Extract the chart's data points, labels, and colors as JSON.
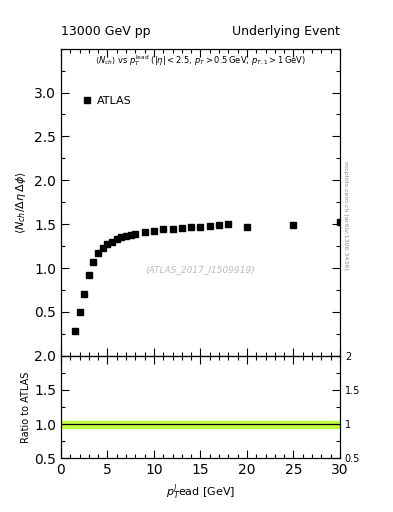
{
  "title_left": "13000 GeV pp",
  "title_right": "Underlying Event",
  "annotation": "(ATLAS_2017_I1509919)",
  "arxiv_text": "[arXiv:1306.3436]",
  "mcplots_text": "mcplots.cern.ch",
  "legend_label": "ATLAS",
  "ylabel_main": "<N_{ch}/ #Delta#eta deltaphi>",
  "ylabel_ratio": "Ratio to ATLAS",
  "xlabel": "p_{T}^{l}ead [GeV]",
  "xlim": [
    0,
    30
  ],
  "ylim_main": [
    0,
    3.5
  ],
  "ylim_ratio": [
    0.5,
    2.0
  ],
  "xticks": [
    0,
    5,
    10,
    15,
    20,
    25,
    30
  ],
  "yticks_main": [
    0.5,
    1.0,
    1.5,
    2.0,
    2.5,
    3.0
  ],
  "yticks_ratio": [
    0.5,
    1.0,
    1.5,
    2.0
  ],
  "data_x": [
    1.5,
    2.0,
    2.5,
    3.0,
    3.5,
    4.0,
    4.5,
    5.0,
    5.5,
    6.0,
    6.5,
    7.0,
    7.5,
    8.0,
    9.0,
    10.0,
    11.0,
    12.0,
    13.0,
    14.0,
    15.0,
    16.0,
    17.0,
    18.0,
    20.0,
    25.0,
    30.0
  ],
  "data_y": [
    0.28,
    0.5,
    0.7,
    0.92,
    1.07,
    1.17,
    1.23,
    1.27,
    1.3,
    1.33,
    1.35,
    1.36,
    1.38,
    1.39,
    1.41,
    1.42,
    1.44,
    1.45,
    1.46,
    1.47,
    1.47,
    1.48,
    1.49,
    1.5,
    1.47,
    1.49,
    1.53
  ],
  "marker_color": "black",
  "marker_style": "s",
  "marker_size": 4,
  "ratio_line_y": 1.0,
  "ratio_band_color": "#aaff00",
  "ratio_band_alpha": 0.7,
  "ratio_band_halfwidth": 0.05,
  "background_color": "white"
}
